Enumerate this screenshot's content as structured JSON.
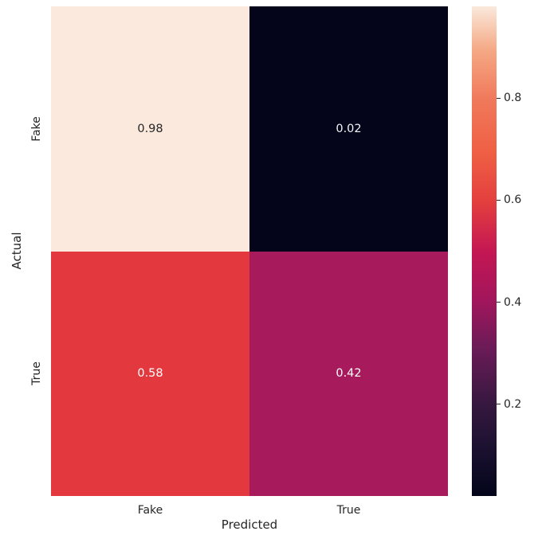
{
  "figure": {
    "background": "#ffffff",
    "text_color": "#262626"
  },
  "chart_data": {
    "type": "heatmap",
    "title": "",
    "xlabel": "Predicted",
    "ylabel": "Actual",
    "x_tick_labels": [
      "Fake",
      "True"
    ],
    "y_tick_labels": [
      "Fake",
      "True"
    ],
    "values": [
      [
        0.98,
        0.02
      ],
      [
        0.58,
        0.42
      ]
    ],
    "cell_labels": [
      [
        "0.98",
        "0.02"
      ],
      [
        "0.58",
        "0.42"
      ]
    ],
    "cell_colors": [
      [
        "#FAE9DC",
        "#04051B"
      ],
      [
        "#E4383F",
        "#A71A5B"
      ]
    ],
    "cell_text_colors": [
      [
        "#262626",
        "#F2F2F2"
      ],
      [
        "#FFFFFF",
        "#FFFFFF"
      ]
    ],
    "colormap": "rocket",
    "grid": false,
    "legend": null,
    "colorbar": {
      "position": "right",
      "vmin": 0.02,
      "vmax": 0.98,
      "ticks": [
        0.2,
        0.4,
        0.6,
        0.8
      ],
      "tick_labels": [
        "0.2",
        "0.4",
        "0.6",
        "0.8"
      ],
      "gradient_stops": [
        {
          "pos": 0.0,
          "color": "#03051A"
        },
        {
          "pos": 0.1,
          "color": "#1C1130"
        },
        {
          "pos": 0.19,
          "color": "#371840"
        },
        {
          "pos": 0.3,
          "color": "#6A1B57"
        },
        {
          "pos": 0.4,
          "color": "#A2165C"
        },
        {
          "pos": 0.5,
          "color": "#C41753"
        },
        {
          "pos": 0.6,
          "color": "#E33F3E"
        },
        {
          "pos": 0.7,
          "color": "#EF5F44"
        },
        {
          "pos": 0.81,
          "color": "#F0795B"
        },
        {
          "pos": 0.91,
          "color": "#F5A884"
        },
        {
          "pos": 1.0,
          "color": "#FAE9DC"
        }
      ]
    }
  }
}
